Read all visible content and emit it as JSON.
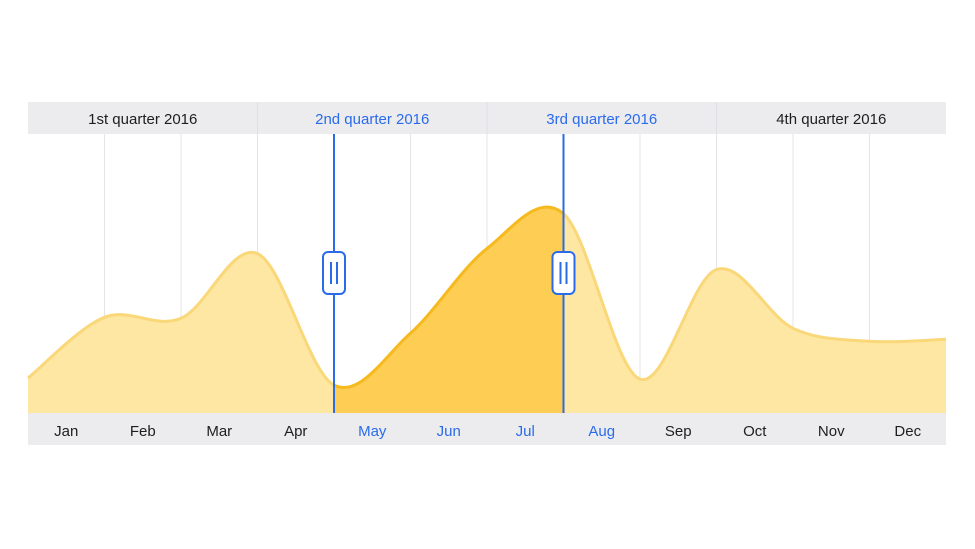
{
  "chart_data": {
    "type": "area",
    "quarters": [
      "1st quarter 2016",
      "2nd quarter 2016",
      "3rd quarter 2016",
      "4th quarter 2016"
    ],
    "categories": [
      "Jan",
      "Feb",
      "Mar",
      "Apr",
      "May",
      "Jun",
      "Jul",
      "Aug",
      "Sep",
      "Oct",
      "Nov",
      "Dec"
    ],
    "series": [
      {
        "x": [
          0,
          1,
          2,
          3,
          4,
          5,
          6,
          7,
          8,
          9,
          10,
          11,
          12
        ],
        "values": [
          35,
          96,
          95,
          160,
          28,
          80,
          165,
          200,
          34,
          144,
          85,
          72,
          74
        ]
      }
    ],
    "ylim": [
      0,
      280
    ],
    "selection": {
      "start": "May",
      "end": "Aug"
    },
    "colors": {
      "header_bg": "#ECECEF",
      "text": "#1E1E1E",
      "selected_text": "#2A6BEA",
      "area": "#FDE7A3",
      "area_selected": "#FDCD54",
      "line": "#FAD778",
      "line_selected": "#F6B91E",
      "handle": "#2A6BEA",
      "grid": "#E4E4E4"
    }
  }
}
